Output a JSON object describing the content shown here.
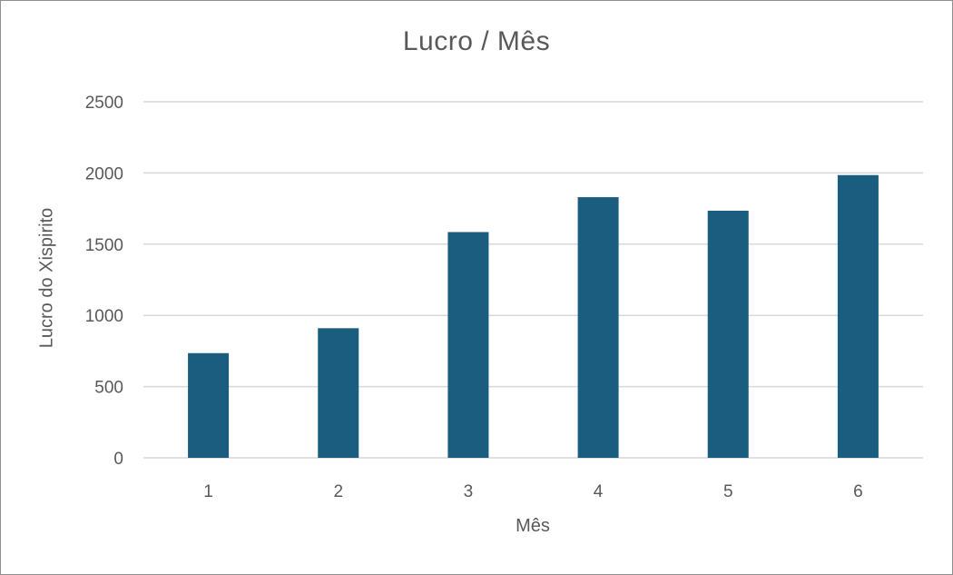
{
  "chart_data": {
    "type": "bar",
    "title": "Lucro / Mês",
    "xlabel": "Mês",
    "ylabel": "Lucro do Xispirito",
    "categories": [
      "1",
      "2",
      "3",
      "4",
      "5",
      "6"
    ],
    "values": [
      735,
      910,
      1585,
      1830,
      1735,
      1985
    ],
    "ylim": [
      0,
      2500
    ],
    "yticks": [
      "0",
      "500",
      "1000",
      "1500",
      "2000",
      "2500"
    ],
    "grid": true,
    "bar_color": "#1b5d7e",
    "grid_color": "#d9d9d9"
  }
}
